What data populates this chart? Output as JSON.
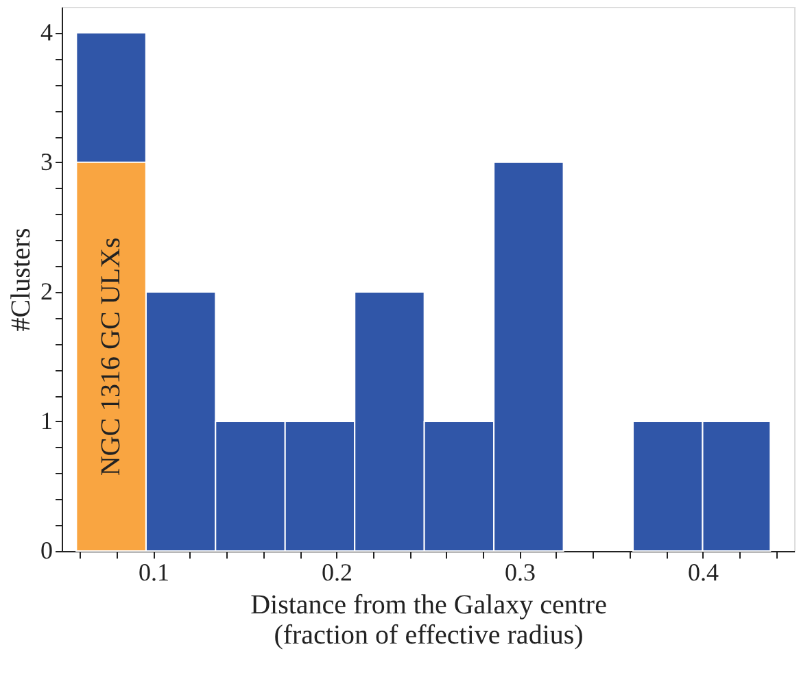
{
  "chart_data": {
    "type": "histogram",
    "xlabel": "Distance from the Galaxy centre\n(fraction of effective radius)",
    "ylabel": "#Clusters",
    "bins": [
      0.058,
      0.096,
      0.134,
      0.172,
      0.21,
      0.248,
      0.286,
      0.324,
      0.362,
      0.4,
      0.437
    ],
    "series": [
      {
        "color": "#3056a8",
        "values": [
          4,
          2,
          1,
          1,
          2,
          1,
          3,
          0,
          1,
          1
        ]
      },
      {
        "name": "NGC 1316 GC ULXs",
        "color": "#f9a541",
        "values": [
          3,
          null,
          null,
          null,
          null,
          null,
          null,
          null,
          null,
          null
        ]
      }
    ],
    "xlim": [
      0.05,
      0.45
    ],
    "ylim": [
      0,
      4.2
    ],
    "xticks": [
      {
        "value": 0.06,
        "label": null
      },
      {
        "value": 0.08,
        "label": null
      },
      0.1,
      {
        "value": 0.12,
        "label": null
      },
      {
        "value": 0.14,
        "label": null
      },
      {
        "value": 0.16,
        "label": null
      },
      {
        "value": 0.18,
        "label": null
      },
      0.2,
      {
        "value": 0.22,
        "label": null
      },
      {
        "value": 0.24,
        "label": null
      },
      {
        "value": 0.26,
        "label": null
      },
      {
        "value": 0.28,
        "label": null
      },
      0.3,
      {
        "value": 0.32,
        "label": null
      },
      {
        "value": 0.34,
        "label": null
      },
      {
        "value": 0.36,
        "label": null
      },
      {
        "value": 0.38,
        "label": null
      },
      0.4,
      {
        "value": 0.42,
        "label": null
      },
      {
        "value": 0.44,
        "label": null
      }
    ],
    "yticks": [
      0,
      {
        "value": 0.2,
        "label": null
      },
      {
        "value": 0.4,
        "label": null
      },
      {
        "value": 0.6,
        "label": null
      },
      {
        "value": 0.8,
        "label": null
      },
      1,
      {
        "value": 1.2,
        "label": null
      },
      {
        "value": 1.4,
        "label": null
      },
      {
        "value": 1.6,
        "label": null
      },
      {
        "value": 1.8,
        "label": null
      },
      2,
      {
        "value": 2.2,
        "label": null
      },
      {
        "value": 2.4,
        "label": null
      },
      {
        "value": 2.6,
        "label": null
      },
      {
        "value": 2.8,
        "label": null
      },
      3,
      {
        "value": 3.2,
        "label": null
      },
      {
        "value": 3.4,
        "label": null
      },
      {
        "value": 3.6,
        "label": null
      },
      {
        "value": 3.8,
        "label": null
      },
      4
    ],
    "grid": false,
    "legend": false
  }
}
